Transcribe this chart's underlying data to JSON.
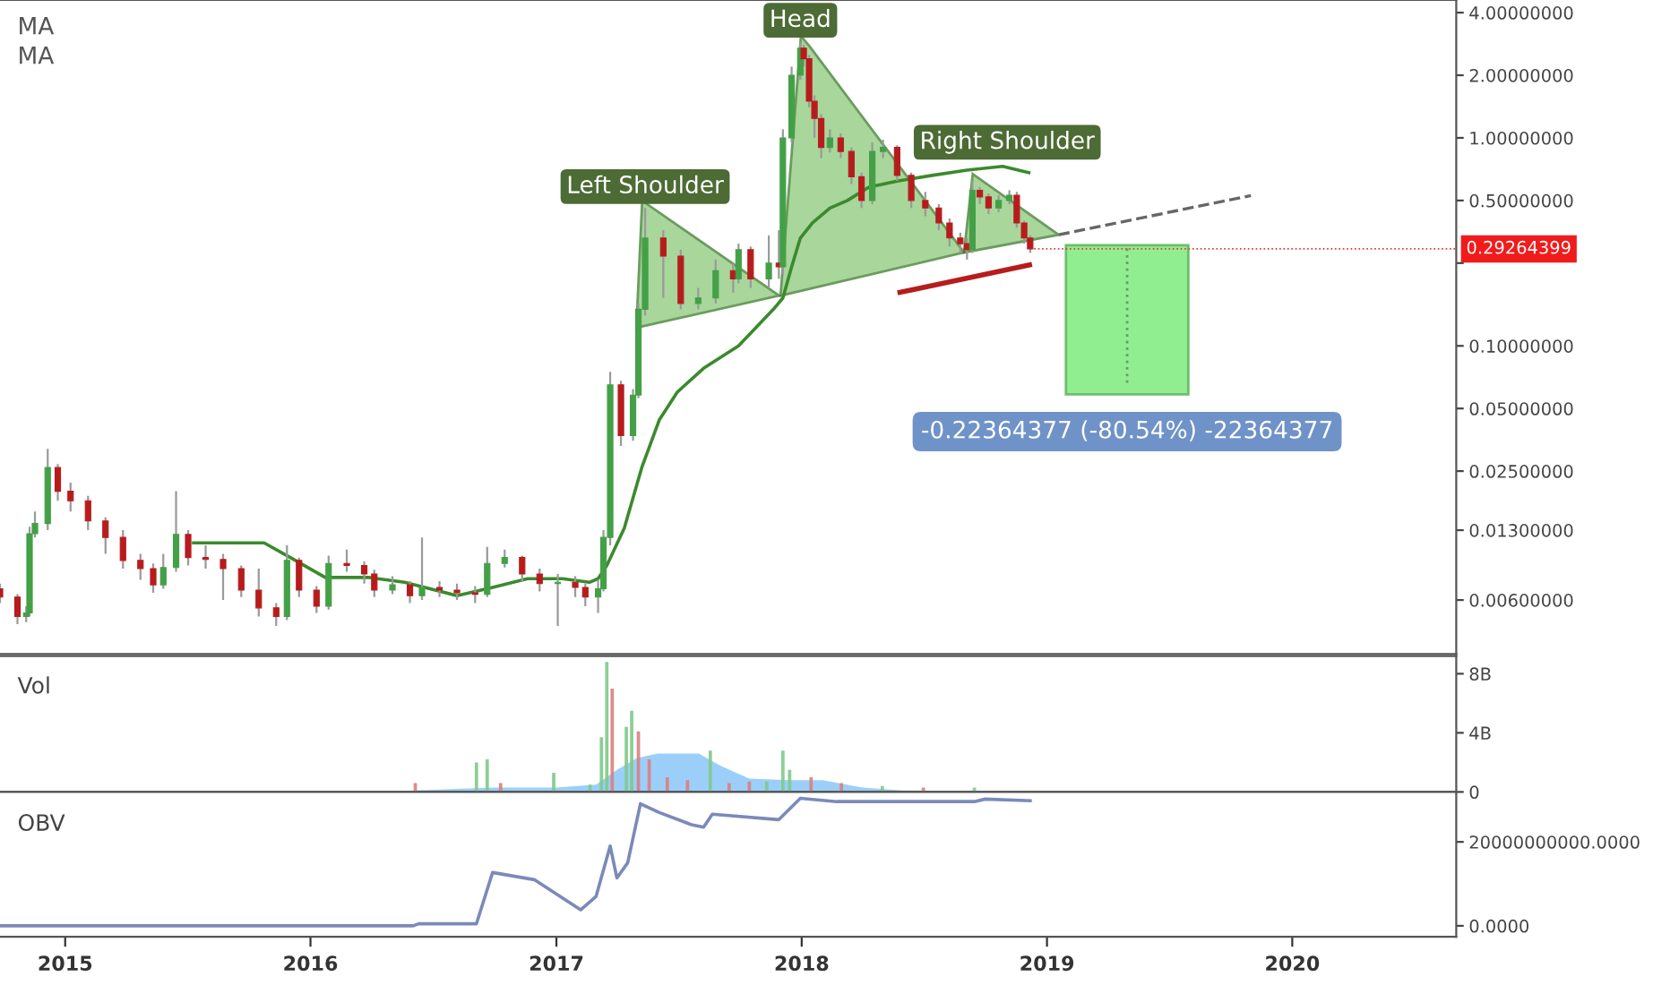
{
  "chart_data": [
    {
      "type": "candlestick",
      "xlim": [
        "2014-09-26",
        "2020-09-01"
      ],
      "xticks": [
        "2015",
        "2016",
        "2017",
        "2018",
        "2019",
        "2020"
      ],
      "ylim": [
        0.0033,
        4.6
      ],
      "log": true,
      "tick_labels": "y",
      "grid": false,
      "legend": false,
      "yticks": [
        {
          "value": 4,
          "label": "4.00000000"
        },
        {
          "value": 2,
          "label": "2.00000000"
        },
        {
          "value": 1,
          "label": "1.00000000"
        },
        {
          "value": 0.5,
          "label": "0.50000000"
        },
        {
          "value": 0.25,
          "label": null
        },
        {
          "value": 0.1,
          "label": "0.10000000"
        },
        {
          "value": 0.05,
          "label": "0.05000000"
        },
        {
          "value": 0.025,
          "label": "0.02500000"
        },
        {
          "value": 0.013,
          "label": "0.01300000"
        },
        {
          "value": 0.006,
          "label": "0.00600000"
        }
      ],
      "x": [
        "2014-09-26",
        "2014-10-22",
        "2014-11-04",
        "2014-11-09",
        "2014-11-17",
        "2014-12-06",
        "2014-12-21",
        "2015-01-09",
        "2015-02-04",
        "2015-03-02",
        "2015-03-28",
        "2015-04-23",
        "2015-05-12",
        "2015-05-27",
        "2015-06-15",
        "2015-07-03",
        "2015-07-29",
        "2015-08-24",
        "2015-09-20",
        "2015-10-16",
        "2015-11-11",
        "2015-11-27",
        "2015-12-15",
        "2016-01-10",
        "2016-01-28",
        "2016-02-24",
        "2016-03-21",
        "2016-04-05",
        "2016-05-02",
        "2016-05-28",
        "2016-06-15",
        "2016-07-11",
        "2016-08-06",
        "2016-09-02",
        "2016-09-20",
        "2016-10-16",
        "2016-11-11",
        "2016-12-07",
        "2017-01-03",
        "2017-01-29",
        "2017-02-13",
        "2017-03-04",
        "2017-03-12",
        "2017-03-22",
        "2017-04-07",
        "2017-04-25",
        "2017-05-03",
        "2017-05-13",
        "2017-06-09",
        "2017-07-05",
        "2017-07-31",
        "2017-08-26",
        "2017-09-21",
        "2017-09-29",
        "2017-10-17",
        "2017-11-13",
        "2017-11-28",
        "2017-12-04",
        "2017-12-17",
        "2017-12-30",
        "2018-01-04",
        "2018-01-12",
        "2018-01-20",
        "2018-01-30",
        "2018-02-12",
        "2018-02-28",
        "2018-03-16",
        "2018-03-31",
        "2018-04-16",
        "2018-05-02",
        "2018-05-23",
        "2018-06-13",
        "2018-07-04",
        "2018-07-24",
        "2018-08-09",
        "2018-08-25",
        "2018-09-04",
        "2018-09-12",
        "2018-09-23",
        "2018-10-06",
        "2018-10-21",
        "2018-11-06",
        "2018-11-17",
        "2018-11-28",
        "2018-12-07"
      ],
      "ohlc": [
        [
          0.0068,
          0.0072,
          0.0058,
          0.0062
        ],
        [
          0.0062,
          0.0064,
          0.0046,
          0.005
        ],
        [
          0.005,
          0.0056,
          0.0047,
          0.0052
        ],
        [
          0.0052,
          0.0135,
          0.005,
          0.0125
        ],
        [
          0.0125,
          0.016,
          0.012,
          0.014
        ],
        [
          0.014,
          0.032,
          0.013,
          0.026
        ],
        [
          0.026,
          0.027,
          0.018,
          0.02
        ],
        [
          0.02,
          0.022,
          0.016,
          0.018
        ],
        [
          0.018,
          0.019,
          0.013,
          0.0144
        ],
        [
          0.0144,
          0.015,
          0.01,
          0.012
        ],
        [
          0.012,
          0.013,
          0.0085,
          0.0093
        ],
        [
          0.0093,
          0.01,
          0.0075,
          0.0085
        ],
        [
          0.0085,
          0.009,
          0.0065,
          0.0071
        ],
        [
          0.0071,
          0.01,
          0.0068,
          0.0086
        ],
        [
          0.0086,
          0.02,
          0.0082,
          0.0124
        ],
        [
          0.0124,
          0.013,
          0.0088,
          0.0096
        ],
        [
          0.0096,
          0.011,
          0.0085,
          0.0094
        ],
        [
          0.0094,
          0.01,
          0.006,
          0.0085
        ],
        [
          0.0085,
          0.0088,
          0.0062,
          0.0067
        ],
        [
          0.0067,
          0.0085,
          0.005,
          0.0055
        ],
        [
          0.0055,
          0.0058,
          0.0045,
          0.005
        ],
        [
          0.005,
          0.011,
          0.0048,
          0.0093
        ],
        [
          0.0093,
          0.0096,
          0.0062,
          0.0067
        ],
        [
          0.0067,
          0.007,
          0.0052,
          0.0056
        ],
        [
          0.0056,
          0.0098,
          0.0054,
          0.009
        ],
        [
          0.009,
          0.0105,
          0.0082,
          0.0088
        ],
        [
          0.0088,
          0.0092,
          0.0072,
          0.008
        ],
        [
          0.008,
          0.0084,
          0.0062,
          0.0067
        ],
        [
          0.0067,
          0.0078,
          0.0064,
          0.0071
        ],
        [
          0.0071,
          0.0074,
          0.0058,
          0.0063
        ],
        [
          0.0063,
          0.012,
          0.006,
          0.0069
        ],
        [
          0.0069,
          0.0074,
          0.0062,
          0.0067
        ],
        [
          0.0067,
          0.0072,
          0.006,
          0.0065
        ],
        [
          0.0065,
          0.007,
          0.0058,
          0.0064
        ],
        [
          0.0064,
          0.0108,
          0.0062,
          0.009
        ],
        [
          0.009,
          0.0105,
          0.0086,
          0.0096
        ],
        [
          0.0096,
          0.0098,
          0.0074,
          0.008
        ],
        [
          0.008,
          0.0085,
          0.0066,
          0.0072
        ],
        [
          0.0072,
          0.008,
          0.0045,
          0.0073
        ],
        [
          0.0073,
          0.0078,
          0.0062,
          0.0069
        ],
        [
          0.0069,
          0.0072,
          0.0056,
          0.0062
        ],
        [
          0.0062,
          0.0075,
          0.0052,
          0.0068
        ],
        [
          0.0068,
          0.013,
          0.0066,
          0.012
        ],
        [
          0.012,
          0.075,
          0.011,
          0.065
        ],
        [
          0.065,
          0.068,
          0.033,
          0.037
        ],
        [
          0.037,
          0.062,
          0.035,
          0.058
        ],
        [
          0.058,
          0.16,
          0.056,
          0.15
        ],
        [
          0.15,
          0.46,
          0.14,
          0.33
        ],
        [
          0.33,
          0.36,
          0.17,
          0.27
        ],
        [
          0.27,
          0.29,
          0.15,
          0.16
        ],
        [
          0.16,
          0.19,
          0.15,
          0.17
        ],
        [
          0.17,
          0.26,
          0.16,
          0.23
        ],
        [
          0.23,
          0.25,
          0.18,
          0.21
        ],
        [
          0.21,
          0.31,
          0.2,
          0.29
        ],
        [
          0.29,
          0.3,
          0.19,
          0.21
        ],
        [
          0.21,
          0.34,
          0.19,
          0.25
        ],
        [
          0.25,
          0.36,
          0.21,
          0.24
        ],
        [
          0.24,
          1.1,
          0.22,
          1.0
        ],
        [
          1.0,
          2.2,
          0.95,
          2.0
        ],
        [
          2.0,
          2.9,
          1.9,
          2.7
        ],
        [
          2.7,
          2.8,
          2.2,
          2.4
        ],
        [
          2.4,
          2.5,
          1.4,
          1.5
        ],
        [
          1.5,
          1.6,
          1.0,
          1.24
        ],
        [
          1.24,
          1.3,
          0.8,
          0.9
        ],
        [
          0.9,
          1.1,
          0.85,
          1.0
        ],
        [
          1.0,
          1.05,
          0.8,
          0.86
        ],
        [
          0.86,
          0.9,
          0.6,
          0.65
        ],
        [
          0.65,
          0.68,
          0.46,
          0.5
        ],
        [
          0.5,
          0.95,
          0.48,
          0.86
        ],
        [
          0.86,
          0.98,
          0.8,
          0.9
        ],
        [
          0.9,
          0.92,
          0.62,
          0.66
        ],
        [
          0.66,
          0.68,
          0.46,
          0.5
        ],
        [
          0.5,
          0.55,
          0.42,
          0.46
        ],
        [
          0.46,
          0.48,
          0.36,
          0.39
        ],
        [
          0.39,
          0.41,
          0.3,
          0.33
        ],
        [
          0.33,
          0.35,
          0.28,
          0.31
        ],
        [
          0.31,
          0.33,
          0.26,
          0.29
        ],
        [
          0.29,
          0.62,
          0.28,
          0.56
        ],
        [
          0.56,
          0.58,
          0.48,
          0.52
        ],
        [
          0.52,
          0.54,
          0.43,
          0.46
        ],
        [
          0.46,
          0.53,
          0.44,
          0.5
        ],
        [
          0.5,
          0.56,
          0.48,
          0.53
        ],
        [
          0.53,
          0.55,
          0.37,
          0.39
        ],
        [
          0.39,
          0.4,
          0.31,
          0.33
        ],
        [
          0.33,
          0.34,
          0.28,
          0.29264399
        ]
      ],
      "series": [
        {
          "type": "line",
          "color": "#3b8a2e",
          "line_style": "solid",
          "x": [
            "2015-07-11",
            "2015-10-24",
            "2015-12-02",
            "2016-01-23",
            "2016-03-29",
            "2016-05-20",
            "2016-08-06",
            "2016-09-28",
            "2016-11-19",
            "2017-01-10",
            "2017-02-19",
            "2017-03-04",
            "2017-03-17",
            "2017-04-12",
            "2017-05-08",
            "2017-06-03",
            "2017-06-30",
            "2017-08-08",
            "2017-09-29",
            "2017-11-20",
            "2017-12-04",
            "2017-12-17",
            "2017-12-30",
            "2018-01-17",
            "2018-02-12",
            "2018-03-10",
            "2018-04-11",
            "2018-05-23",
            "2018-07-14",
            "2018-09-04",
            "2018-10-27",
            "2018-12-05"
          ],
          "values": [
            0.0113,
            0.0113,
            0.0096,
            0.0077,
            0.0077,
            0.0073,
            0.0063,
            0.0069,
            0.0076,
            0.0076,
            0.0073,
            0.0076,
            0.0088,
            0.0133,
            0.026,
            0.044,
            0.06,
            0.078,
            0.1,
            0.15,
            0.17,
            0.24,
            0.33,
            0.39,
            0.46,
            0.5,
            0.58,
            0.62,
            0.66,
            0.7,
            0.73,
            0.68
          ]
        }
      ],
      "annotations": [
        "MA",
        "MA",
        "-0.22364377 (-80.54%) -22364377",
        {
          "text": "Left Shoulder",
          "x": "2017-05-13",
          "y": 0.46
        },
        {
          "text": "Head",
          "x": "2017-12-30",
          "y": 2.9
        },
        {
          "text": "Right Shoulder",
          "x": "2018-09-12",
          "y": 0.62
        },
        {
          "text": "0.29264399",
          "x": "2018-12-07",
          "y": 0.29264399
        }
      ]
    },
    {
      "type": "bar",
      "title": "Vol",
      "xlim": [
        "2014-09-26",
        "2020-09-01"
      ],
      "xticks": [
        "2015",
        "2016",
        "2017",
        "2018",
        "2019",
        "2020"
      ],
      "ylim": [
        0,
        9200000000
      ],
      "tick_labels": "y",
      "grid": false,
      "legend": false,
      "yticks": [
        0,
        {
          "value": 4000000000,
          "label": "4B"
        },
        {
          "value": 8000000000,
          "label": "8B"
        }
      ],
      "series": [
        {
          "type": "area",
          "color": "#90caf9",
          "x": [
            "2016-06-01",
            "2016-10-01",
            "2017-01-01",
            "2017-03-01",
            "2017-04-01",
            "2017-05-01",
            "2017-06-01",
            "2017-08-01",
            "2017-09-01",
            "2017-10-15",
            "2017-12-15",
            "2018-02-01",
            "2018-04-01",
            "2018-06-01",
            "2018-12-07"
          ],
          "values": [
            100000000,
            300000000,
            300000000,
            500000000,
            1500000000,
            2300000000,
            2600000000,
            2600000000,
            1800000000,
            900000000,
            800000000,
            800000000,
            300000000,
            100000000,
            0
          ]
        },
        {
          "type": "bar",
          "x": [
            "2016-06-05",
            "2016-09-04",
            "2016-09-20",
            "2016-10-10",
            "2016-12-28",
            "2017-02-20",
            "2017-03-09",
            "2017-03-17",
            "2017-03-25",
            "2017-04-15",
            "2017-04-23",
            "2017-05-03",
            "2017-05-19",
            "2017-06-15",
            "2017-07-15",
            "2017-08-18",
            "2017-09-15",
            "2017-10-15",
            "2017-11-10",
            "2017-12-04",
            "2017-12-14",
            "2018-01-15",
            "2018-03-01",
            "2018-05-01",
            "2018-07-01",
            "2018-09-15"
          ],
          "values": [
            600000000,
            2000000000,
            2200000000,
            600000000,
            1300000000,
            500000000,
            3700000000,
            8800000000,
            7000000000,
            4400000000,
            5500000000,
            4100000000,
            2200000000,
            1000000000,
            800000000,
            2800000000,
            600000000,
            700000000,
            700000000,
            2800000000,
            1500000000,
            1000000000,
            600000000,
            400000000,
            300000000,
            300000000
          ],
          "colors": [
            "#d98080",
            "#7fc98a",
            "#7fc98a",
            "#d98080",
            "#7fc98a",
            "#7fc98a",
            "#7fc98a",
            "#7fc98a",
            "#d98080",
            "#7fc98a",
            "#7fc98a",
            "#d98080",
            "#d98080",
            "#d98080",
            "#d98080",
            "#7fc98a",
            "#d98080",
            "#d98080",
            "#7fc98a",
            "#7fc98a",
            "#7fc98a",
            "#d98080",
            "#d98080",
            "#7fc98a",
            "#d98080",
            "#7fc98a"
          ]
        }
      ]
    },
    {
      "type": "line",
      "title": "OBV",
      "xlim": [
        "2014-09-26",
        "2020-09-01"
      ],
      "xticks": [
        "2015",
        "2016",
        "2017",
        "2018",
        "2019",
        "2020"
      ],
      "ylim": [
        -2600000000,
        31900000000
      ],
      "grid": false,
      "legend": false,
      "marker": "none",
      "yticks": [
        {
          "value": 0,
          "label": "0.0000"
        },
        {
          "value": 20000000000,
          "label": "20000000000.0000"
        }
      ],
      "series": [
        {
          "color": "#7b8ab8",
          "line_style": "solid",
          "x": [
            "2014-09-26",
            "2016-06-02",
            "2016-06-10",
            "2016-09-04",
            "2016-09-28",
            "2016-11-29",
            "2017-02-06",
            "2017-03-01",
            "2017-03-22",
            "2017-04-01",
            "2017-04-17",
            "2017-05-06",
            "2017-06-03",
            "2017-07-21",
            "2017-08-08",
            "2017-08-21",
            "2017-11-28",
            "2017-12-30",
            "2018-02-22",
            "2018-09-15",
            "2018-10-01",
            "2018-12-07"
          ],
          "values": [
            0,
            0,
            500000000,
            500000000,
            12700000000,
            11000000000,
            3800000000,
            7000000000,
            19000000000,
            11400000000,
            15000000000,
            29100000000,
            27000000000,
            24100000000,
            23500000000,
            26600000000,
            25300000000,
            30400000000,
            29600000000,
            29600000000,
            30200000000,
            29800000000
          ]
        }
      ]
    }
  ]
}
